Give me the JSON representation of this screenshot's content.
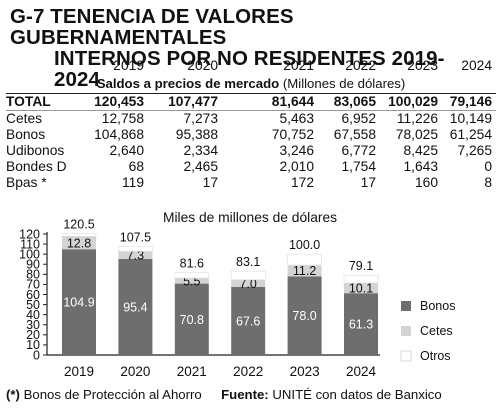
{
  "title": {
    "line1": "G-7 TENENCIA DE VALORES GUBERNAMENTALES",
    "line2": "INTERNOS POR NO RESIDENTES 2019-2024"
  },
  "table": {
    "years": [
      "2019",
      "2020",
      "2021",
      "2022",
      "2023",
      "2024"
    ],
    "subtitle_bold": "Saldos a precios de mercado",
    "subtitle_rest": " (Millones de dólares)",
    "rows": [
      {
        "label": "TOTAL",
        "values": [
          "120,453",
          "107,477",
          "81,644",
          "83,065",
          "100,029",
          "79,146"
        ]
      },
      {
        "label": "Cetes",
        "values": [
          "12,758",
          "7,273",
          "5,463",
          "6,952",
          "11,226",
          "10,149"
        ]
      },
      {
        "label": "Bonos",
        "values": [
          "104,868",
          "95,388",
          "70,752",
          "67,558",
          "78,025",
          "61,254"
        ]
      },
      {
        "label": "Udibonos",
        "values": [
          "2,640",
          "2,334",
          "3,246",
          "6,772",
          "8,425",
          "7,265"
        ]
      },
      {
        "label": "Bondes D",
        "values": [
          "68",
          "2,465",
          "2,010",
          "1,754",
          "1,643",
          "0"
        ]
      },
      {
        "label": "Bpas *",
        "values": [
          "119",
          "17",
          "172",
          "17",
          "160",
          "8"
        ]
      }
    ]
  },
  "chart_data": {
    "type": "bar",
    "stacked": true,
    "title": "Miles de millones de dólares",
    "categories": [
      "2019",
      "2020",
      "2021",
      "2022",
      "2023",
      "2024"
    ],
    "ylim": [
      0,
      120
    ],
    "yticks": [
      0,
      10,
      20,
      30,
      40,
      50,
      60,
      70,
      80,
      90,
      100,
      110,
      120
    ],
    "series": [
      {
        "name": "Bonos",
        "color": "#6e6e6e",
        "values": [
          104.9,
          95.4,
          70.8,
          67.6,
          78.0,
          61.3
        ]
      },
      {
        "name": "Cetes",
        "color": "#d4d4d4",
        "values": [
          12.8,
          7.3,
          5.5,
          7.0,
          11.2,
          10.1
        ]
      },
      {
        "name": "Otros",
        "color": "#ffffff",
        "values": [
          2.8,
          4.8,
          5.3,
          8.5,
          10.8,
          7.7
        ]
      }
    ],
    "totals": [
      "120.5",
      "107.5",
      "81.6",
      "83.1",
      "100.0",
      "79.1"
    ],
    "legend": "right"
  },
  "footer": {
    "note": "(*) Bonos de Protección al Ahorro",
    "source_bold": "Fuente:",
    "source_rest": " UNITÉ con datos de Banxico"
  }
}
